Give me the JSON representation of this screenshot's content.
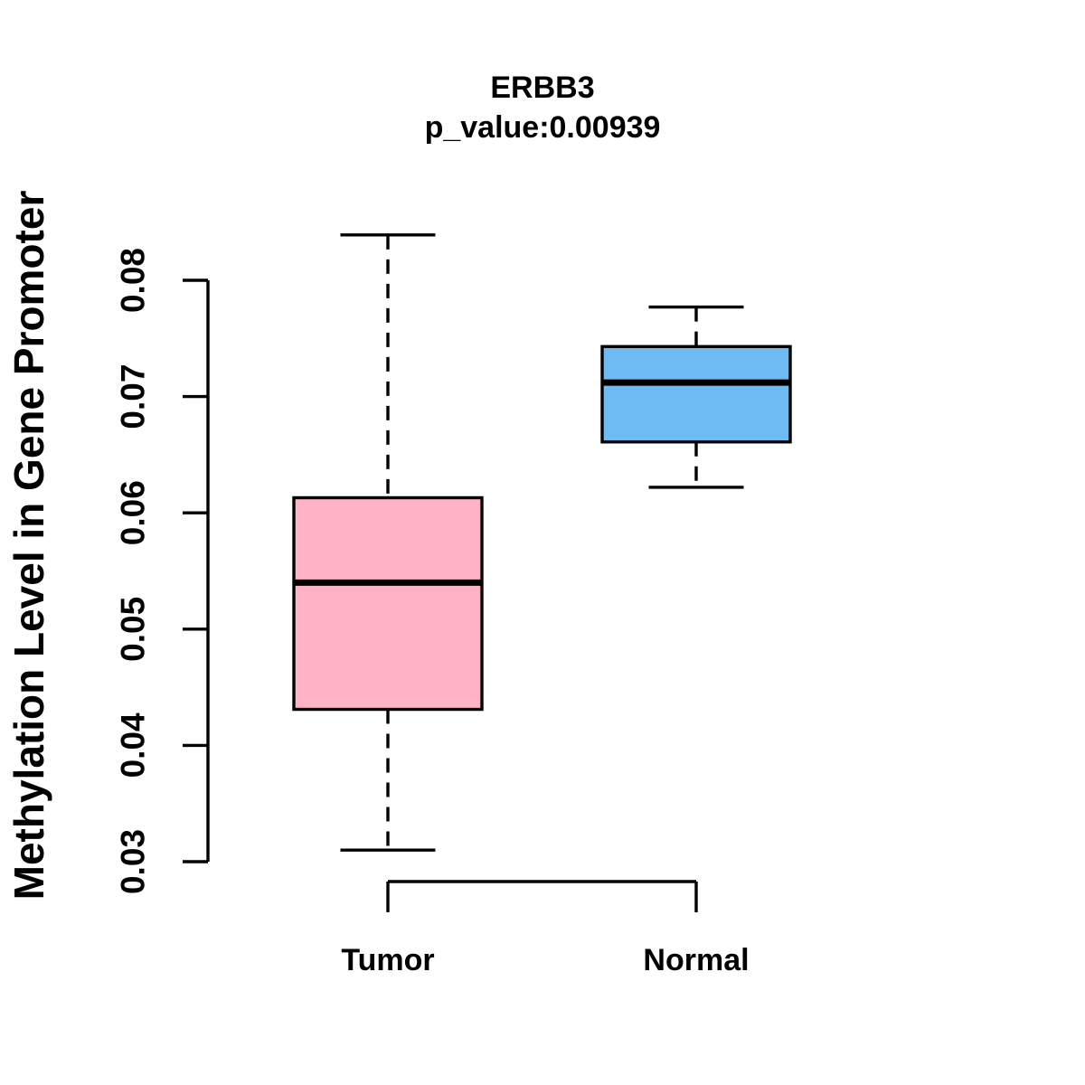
{
  "title": {
    "line1": "ERBB3",
    "line2": "p_value:0.00939"
  },
  "chart_data": {
    "type": "boxplot",
    "title": "ERBB3",
    "subtitle": "p_value:0.00939",
    "ylabel": "Methylation Level in Gene Promoter",
    "xlabel": "",
    "ylim": [
      0.03,
      0.08
    ],
    "yticks": [
      "0.03",
      "0.04",
      "0.05",
      "0.06",
      "0.07",
      "0.08"
    ],
    "categories": [
      "Tumor",
      "Normal"
    ],
    "series": [
      {
        "name": "Tumor",
        "fill_color": "#FFB3C5",
        "whisker_low": 0.031,
        "q1": 0.0431,
        "median": 0.054,
        "q3": 0.0613,
        "whisker_high": 0.0839
      },
      {
        "name": "Normal",
        "fill_color": "#6DBBF2",
        "whisker_low": 0.0622,
        "q1": 0.0661,
        "median": 0.0712,
        "q3": 0.0743,
        "whisker_high": 0.0777
      }
    ],
    "grid": false,
    "legend": false
  },
  "colors": {
    "stroke": "#000000",
    "background": "#FFFFFF"
  }
}
